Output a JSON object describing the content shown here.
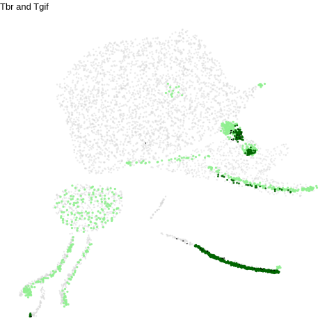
{
  "chart_data": {
    "type": "scatter",
    "title": "Tbr and Tgif",
    "xlabel": "",
    "ylabel": "",
    "grid": false,
    "legend": "none",
    "colors": {
      "background_cells": "#d3d3d3",
      "Tbr_only": "#90ee90",
      "Tgif_only": "#2e8b57",
      "coexpressed": "#006400",
      "high_expression": "#000000"
    }
  }
}
